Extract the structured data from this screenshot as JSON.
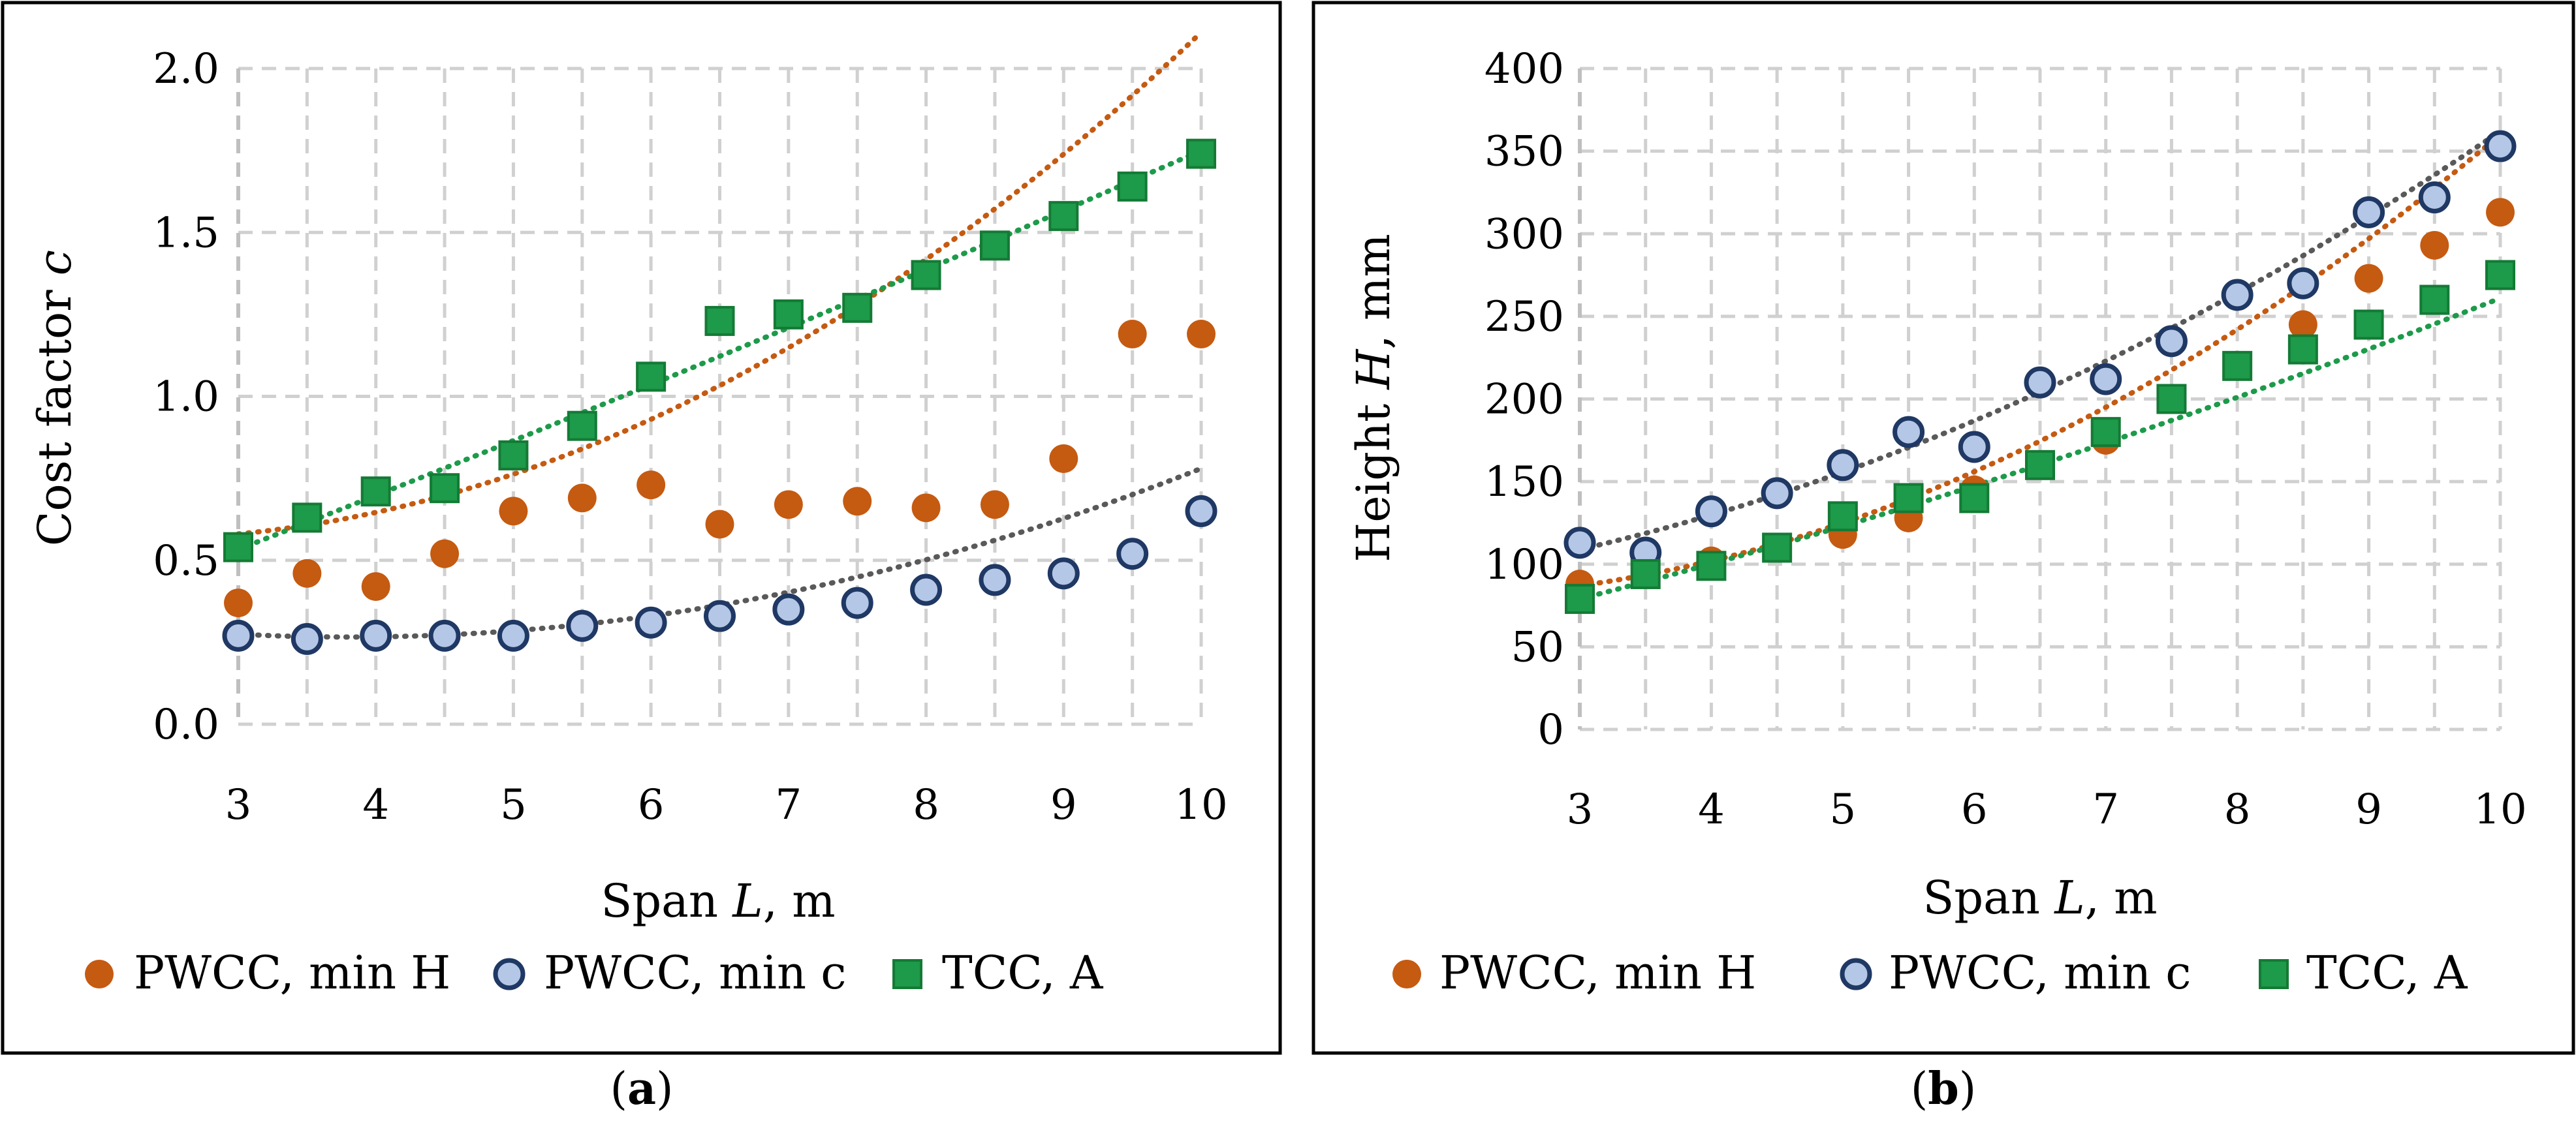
{
  "chart_data": [
    {
      "type": "scatter",
      "panel_caption": "(a)",
      "caption_letter": "a",
      "xlabel_prefix": "Span ",
      "xlabel_var": "L",
      "xlabel_suffix": ", m",
      "ylabel_prefix": "Cost factor ",
      "ylabel_var": "c",
      "ylabel_suffix": "",
      "xlim": [
        3,
        10
      ],
      "ylim": [
        0,
        2.0
      ],
      "x_ticks": [
        "3",
        "4",
        "5",
        "6",
        "7",
        "8",
        "9",
        "10"
      ],
      "y_ticks": [
        "0.0",
        "0.5",
        "1.0",
        "1.5",
        "2.0"
      ],
      "grid": true,
      "legend_position": "bottom",
      "series": [
        {
          "name": "PWCC, min H",
          "marker": "filled-circle",
          "color": "#c55a11",
          "x": [
            3,
            3.5,
            4,
            4.5,
            5,
            5.5,
            6,
            6.5,
            7,
            7.5,
            8,
            8.5,
            9,
            9.5,
            10
          ],
          "y": [
            0.37,
            0.46,
            0.42,
            0.52,
            0.65,
            0.69,
            0.73,
            0.61,
            0.67,
            0.68,
            0.66,
            0.67,
            0.81,
            1.19,
            1.19
          ],
          "trend": [
            0.0255,
            -0.113,
            0.69
          ]
        },
        {
          "name": "PWCC, min c",
          "marker": "open-circle",
          "color": "#1f3864",
          "x": [
            3,
            3.5,
            4,
            4.5,
            5,
            5.5,
            6,
            6.5,
            7,
            7.5,
            8,
            8.5,
            9,
            9.5,
            10
          ],
          "y": [
            0.27,
            0.26,
            0.27,
            0.27,
            0.27,
            0.3,
            0.31,
            0.33,
            0.35,
            0.37,
            0.41,
            0.44,
            0.46,
            0.52,
            0.65
          ],
          "trend": [
            0.0134,
            -0.102,
            0.46
          ]
        },
        {
          "name": "TCC, A",
          "marker": "square",
          "color": "#1d9a4a",
          "x": [
            3,
            3.5,
            4,
            4.5,
            5,
            5.5,
            6,
            6.5,
            7,
            7.5,
            8,
            8.5,
            9,
            9.5,
            10
          ],
          "y": [
            0.54,
            0.63,
            0.71,
            0.72,
            0.82,
            0.91,
            1.06,
            1.23,
            1.25,
            1.27,
            1.37,
            1.46,
            1.55,
            1.64,
            1.74
          ],
          "trend": [
            0.0016,
            0.153,
            0.06
          ]
        }
      ]
    },
    {
      "type": "scatter",
      "panel_caption": "(b)",
      "caption_letter": "b",
      "xlabel_prefix": "Span ",
      "xlabel_var": "L",
      "xlabel_suffix": ", m",
      "ylabel_prefix": "Height ",
      "ylabel_var": "H",
      "ylabel_suffix": ", mm",
      "xlim": [
        3,
        10
      ],
      "ylim": [
        0,
        400
      ],
      "x_ticks": [
        "3",
        "4",
        "5",
        "6",
        "7",
        "8",
        "9",
        "10"
      ],
      "y_ticks": [
        "0",
        "50",
        "100",
        "150",
        "200",
        "250",
        "300",
        "350",
        "400"
      ],
      "grid": true,
      "legend_position": "bottom",
      "series": [
        {
          "name": "PWCC, min H",
          "marker": "filled-circle",
          "color": "#c55a11",
          "x": [
            3,
            3.5,
            4,
            4.5,
            5,
            5.5,
            6,
            6.5,
            7,
            7.5,
            8,
            8.5,
            9,
            9.5,
            10
          ],
          "y": [
            88,
            95,
            102,
            110,
            118,
            128,
            145,
            160,
            175,
            200,
            220,
            245,
            273,
            293,
            313
          ],
          "trend": [
            4.0,
            -13.0,
            90
          ]
        },
        {
          "name": "PWCC, min c",
          "marker": "open-circle",
          "color": "#1f3864",
          "x": [
            3,
            3.5,
            4,
            4.5,
            5,
            5.5,
            6,
            6.5,
            7,
            7.5,
            8,
            8.5,
            9,
            9.5,
            10
          ],
          "y": [
            113,
            107,
            132,
            143,
            160,
            180,
            171,
            210,
            212,
            235,
            263,
            270,
            313,
            322,
            353
          ],
          "trend": [
            2.55,
            3.0,
            77
          ]
        },
        {
          "name": "TCC, A",
          "marker": "square",
          "color": "#1d9a4a",
          "x": [
            3,
            3.5,
            4,
            4.5,
            5,
            5.5,
            6,
            6.5,
            7,
            7.5,
            8,
            8.5,
            9,
            9.5,
            10
          ],
          "y": [
            79,
            94,
            99,
            110,
            129,
            140,
            140,
            160,
            180,
            200,
            220,
            230,
            245,
            260,
            275
          ],
          "trend": [
            0.8,
            15.6,
            25
          ]
        }
      ]
    }
  ]
}
